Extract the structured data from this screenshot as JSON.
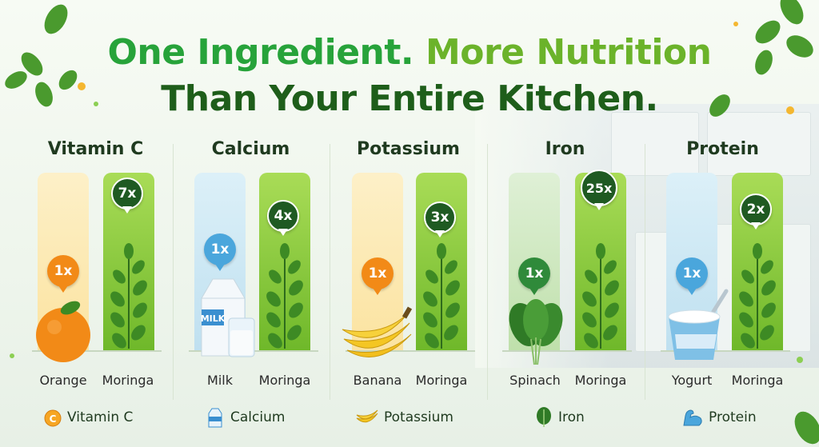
{
  "headline": {
    "part1": "One Ingredient.",
    "part2": "More Nutrition",
    "line2": "Than Your Entire Kitchen."
  },
  "colors": {
    "title_green": "#27a33a",
    "title_lime": "#6bb32a",
    "title_dark": "#1e5e1a",
    "moringa_bar": "#8fcf3e",
    "orange_bar": "#fbe6a8",
    "blue_bar": "#cde7f4",
    "green_bar": "#cfe7c2"
  },
  "chart_data": {
    "type": "bar",
    "categories": [
      "Vitamin C",
      "Calcium",
      "Potassium",
      "Iron",
      "Protein"
    ],
    "series": [
      {
        "values": [
          1,
          1,
          1,
          1,
          1
        ],
        "value_labels": [
          "1x",
          "1x",
          "1x",
          "1x",
          "1x"
        ],
        "item_labels": [
          "Orange",
          "Milk",
          "Banana",
          "Spinach",
          "Yogurt"
        ]
      },
      {
        "values": [
          7,
          4,
          3,
          25,
          2
        ],
        "value_labels": [
          "7x",
          "4x",
          "3x",
          "25x",
          "2x"
        ],
        "item_labels": [
          "Moringa",
          "Moringa",
          "Moringa",
          "Moringa",
          "Moringa"
        ]
      }
    ]
  },
  "columns": [
    {
      "title": "Vitamin C",
      "left_item": "Orange",
      "right_item": "Moringa",
      "left_value": "1x",
      "right_value": "7x",
      "legend": "Vitamin C",
      "legend_icon": "vitamin-c-icon"
    },
    {
      "title": "Calcium",
      "left_item": "Milk",
      "right_item": "Moringa",
      "left_value": "1x",
      "right_value": "4x",
      "legend": "Calcium",
      "legend_icon": "milk-carton-icon"
    },
    {
      "title": "Potassium",
      "left_item": "Banana",
      "right_item": "Moringa",
      "left_value": "1x",
      "right_value": "3x",
      "legend": "Potassium",
      "legend_icon": "banana-icon"
    },
    {
      "title": "Iron",
      "left_item": "Spinach",
      "right_item": "Moringa",
      "left_value": "1x",
      "right_value": "25x",
      "legend": "Iron",
      "legend_icon": "spinach-leaf-icon"
    },
    {
      "title": "Protein",
      "left_item": "Yogurt",
      "right_item": "Moringa",
      "left_value": "1x",
      "right_value": "2x",
      "legend": "Protein",
      "legend_icon": "flexed-arm-icon"
    }
  ],
  "milk_carton_text": "MILK"
}
